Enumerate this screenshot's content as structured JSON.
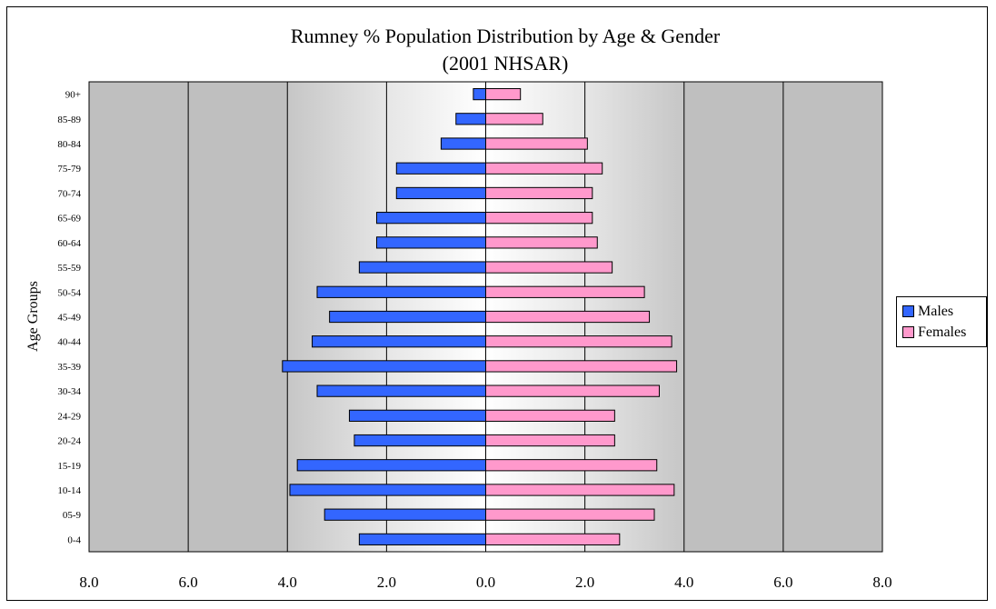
{
  "chart_data": {
    "type": "bar",
    "orientation": "horizontal",
    "layout": "population-pyramid",
    "title": "Rumney % Population Distribution by Age & Gender",
    "subtitle": "(2001 NHSAR)",
    "ylabel": "Age Groups",
    "xlabel": "",
    "xlim": [
      -8,
      8
    ],
    "x_ticks": [
      "8.0",
      "6.0",
      "4.0",
      "2.0",
      "0.0",
      "2.0",
      "4.0",
      "6.0",
      "8.0"
    ],
    "categories": [
      "0-4",
      "05-9",
      "10-14",
      "15-19",
      "20-24",
      "24-29",
      "30-34",
      "35-39",
      "40-44",
      "45-49",
      "50-54",
      "55-59",
      "60-64",
      "65-69",
      "70-74",
      "75-79",
      "80-84",
      "85-89",
      "90+"
    ],
    "series": [
      {
        "name": "Males",
        "color": "#3366ff",
        "direction": "left",
        "values": [
          2.55,
          3.25,
          3.95,
          3.8,
          2.65,
          2.75,
          3.4,
          4.1,
          3.5,
          3.15,
          3.4,
          2.55,
          2.2,
          2.2,
          1.8,
          1.8,
          0.9,
          0.6,
          0.25
        ]
      },
      {
        "name": "Females",
        "color": "#ff99cc",
        "direction": "right",
        "values": [
          2.7,
          3.4,
          3.8,
          3.45,
          2.6,
          2.6,
          3.5,
          3.85,
          3.75,
          3.3,
          3.2,
          2.55,
          2.25,
          2.15,
          2.15,
          2.35,
          2.05,
          1.15,
          0.7
        ]
      }
    ],
    "grid": "vertical",
    "legend_position": "right"
  }
}
